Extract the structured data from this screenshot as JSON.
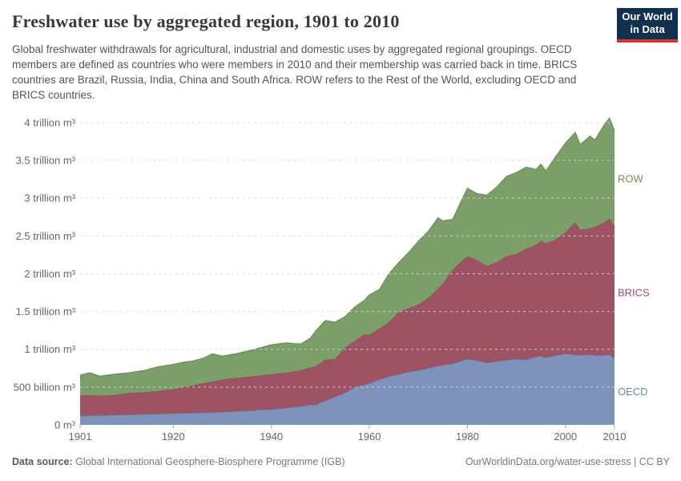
{
  "header": {
    "title": "Freshwater use by aggregated region, 1901 to 2010",
    "subtitle": "Global freshwater withdrawals for agricultural, industrial and domestic uses by aggregated regional groupings. OECD members are defined as countries who were members in 2010 and their membership was carried back in time. BRICS countries are Brazil, Russia, India, China and South Africa. ROW refers to the Rest of the World, excluding OECD and BRICS countries.",
    "logo": {
      "line1": "Our World",
      "line2": "in Data",
      "bg_color": "#12304f",
      "accent_color": "#d7342c"
    }
  },
  "chart_data": {
    "type": "area",
    "stacked": true,
    "title": "Freshwater use by aggregated region, 1901 to 2010",
    "unit": "m³",
    "values_unit": "billion m³",
    "grid": "dashed",
    "legend_position": "right",
    "xlim": [
      1901,
      2010
    ],
    "ylim": [
      0,
      4080
    ],
    "xticks": [
      1901,
      1920,
      1940,
      1960,
      1980,
      2000,
      2010
    ],
    "yticks": [
      {
        "value": 0,
        "label": "0 m³"
      },
      {
        "value": 500,
        "label": "500 billion m³"
      },
      {
        "value": 1000,
        "label": "1 trillion m³"
      },
      {
        "value": 1500,
        "label": "1.5 trillion m³"
      },
      {
        "value": 2000,
        "label": "2 trillion m³"
      },
      {
        "value": 2500,
        "label": "2.5 trillion m³"
      },
      {
        "value": 3000,
        "label": "3 trillion m³"
      },
      {
        "value": 3500,
        "label": "3.5 trillion m³"
      },
      {
        "value": 4000,
        "label": "4 trillion m³"
      }
    ],
    "x": [
      1901,
      1903,
      1905,
      1908,
      1911,
      1914,
      1917,
      1920,
      1922,
      1924,
      1926,
      1928,
      1930,
      1933,
      1936,
      1940,
      1943,
      1946,
      1948,
      1949,
      1951,
      1953,
      1955,
      1957,
      1959,
      1960,
      1962,
      1964,
      1966,
      1968,
      1970,
      1972,
      1974,
      1975,
      1977,
      1979,
      1980,
      1982,
      1984,
      1986,
      1988,
      1990,
      1992,
      1994,
      1995,
      1996,
      1998,
      2000,
      2002,
      2003,
      2005,
      2006,
      2008,
      2009,
      2010
    ],
    "series": [
      {
        "name": "OECD",
        "color": "#7f93ba",
        "edge_color": "#64809f",
        "label_color": "#6e87ae",
        "values": [
          120,
          122,
          125,
          130,
          135,
          140,
          145,
          150,
          155,
          158,
          160,
          165,
          170,
          180,
          190,
          205,
          225,
          245,
          265,
          265,
          320,
          370,
          420,
          500,
          530,
          550,
          600,
          640,
          670,
          700,
          720,
          750,
          780,
          790,
          810,
          850,
          870,
          850,
          820,
          840,
          860,
          870,
          860,
          900,
          910,
          890,
          920,
          940,
          930,
          920,
          930,
          920,
          920,
          930,
          880
        ]
      },
      {
        "name": "BRICS",
        "color": "#9e5365",
        "edge_color": "#8d4356",
        "label_color": "#9d4d5f",
        "values": [
          270,
          270,
          260,
          265,
          285,
          290,
          305,
          320,
          345,
          362,
          390,
          405,
          430,
          440,
          450,
          465,
          465,
          475,
          495,
          505,
          540,
          500,
          600,
          610,
          670,
          640,
          670,
          720,
          820,
          840,
          870,
          930,
          1020,
          1080,
          1240,
          1330,
          1360,
          1330,
          1280,
          1310,
          1370,
          1390,
          1470,
          1480,
          1530,
          1510,
          1530,
          1610,
          1750,
          1660,
          1670,
          1700,
          1760,
          1800,
          1740
        ]
      },
      {
        "name": "ROW",
        "color": "#7c9e69",
        "edge_color": "#698c54",
        "label_color": "#6e9254",
        "values": [
          270,
          298,
          260,
          275,
          270,
          290,
          320,
          330,
          330,
          325,
          330,
          370,
          310,
          325,
          350,
          390,
          395,
          350,
          390,
          470,
          520,
          490,
          410,
          450,
          450,
          530,
          520,
          640,
          660,
          740,
          840,
          880,
          940,
          830,
          670,
          820,
          900,
          880,
          940,
          1000,
          1060,
          1080,
          1080,
          1000,
          1010,
          960,
          1100,
          1180,
          1190,
          1130,
          1220,
          1150,
          1300,
          1330,
          1270
        ]
      }
    ]
  },
  "footer": {
    "source_label": "Data source:",
    "source_text": " Global International Geosphere-Biosphere Programme (IGB)",
    "link_text": "OurWorldinData.org/water-use-stress | CC BY"
  }
}
